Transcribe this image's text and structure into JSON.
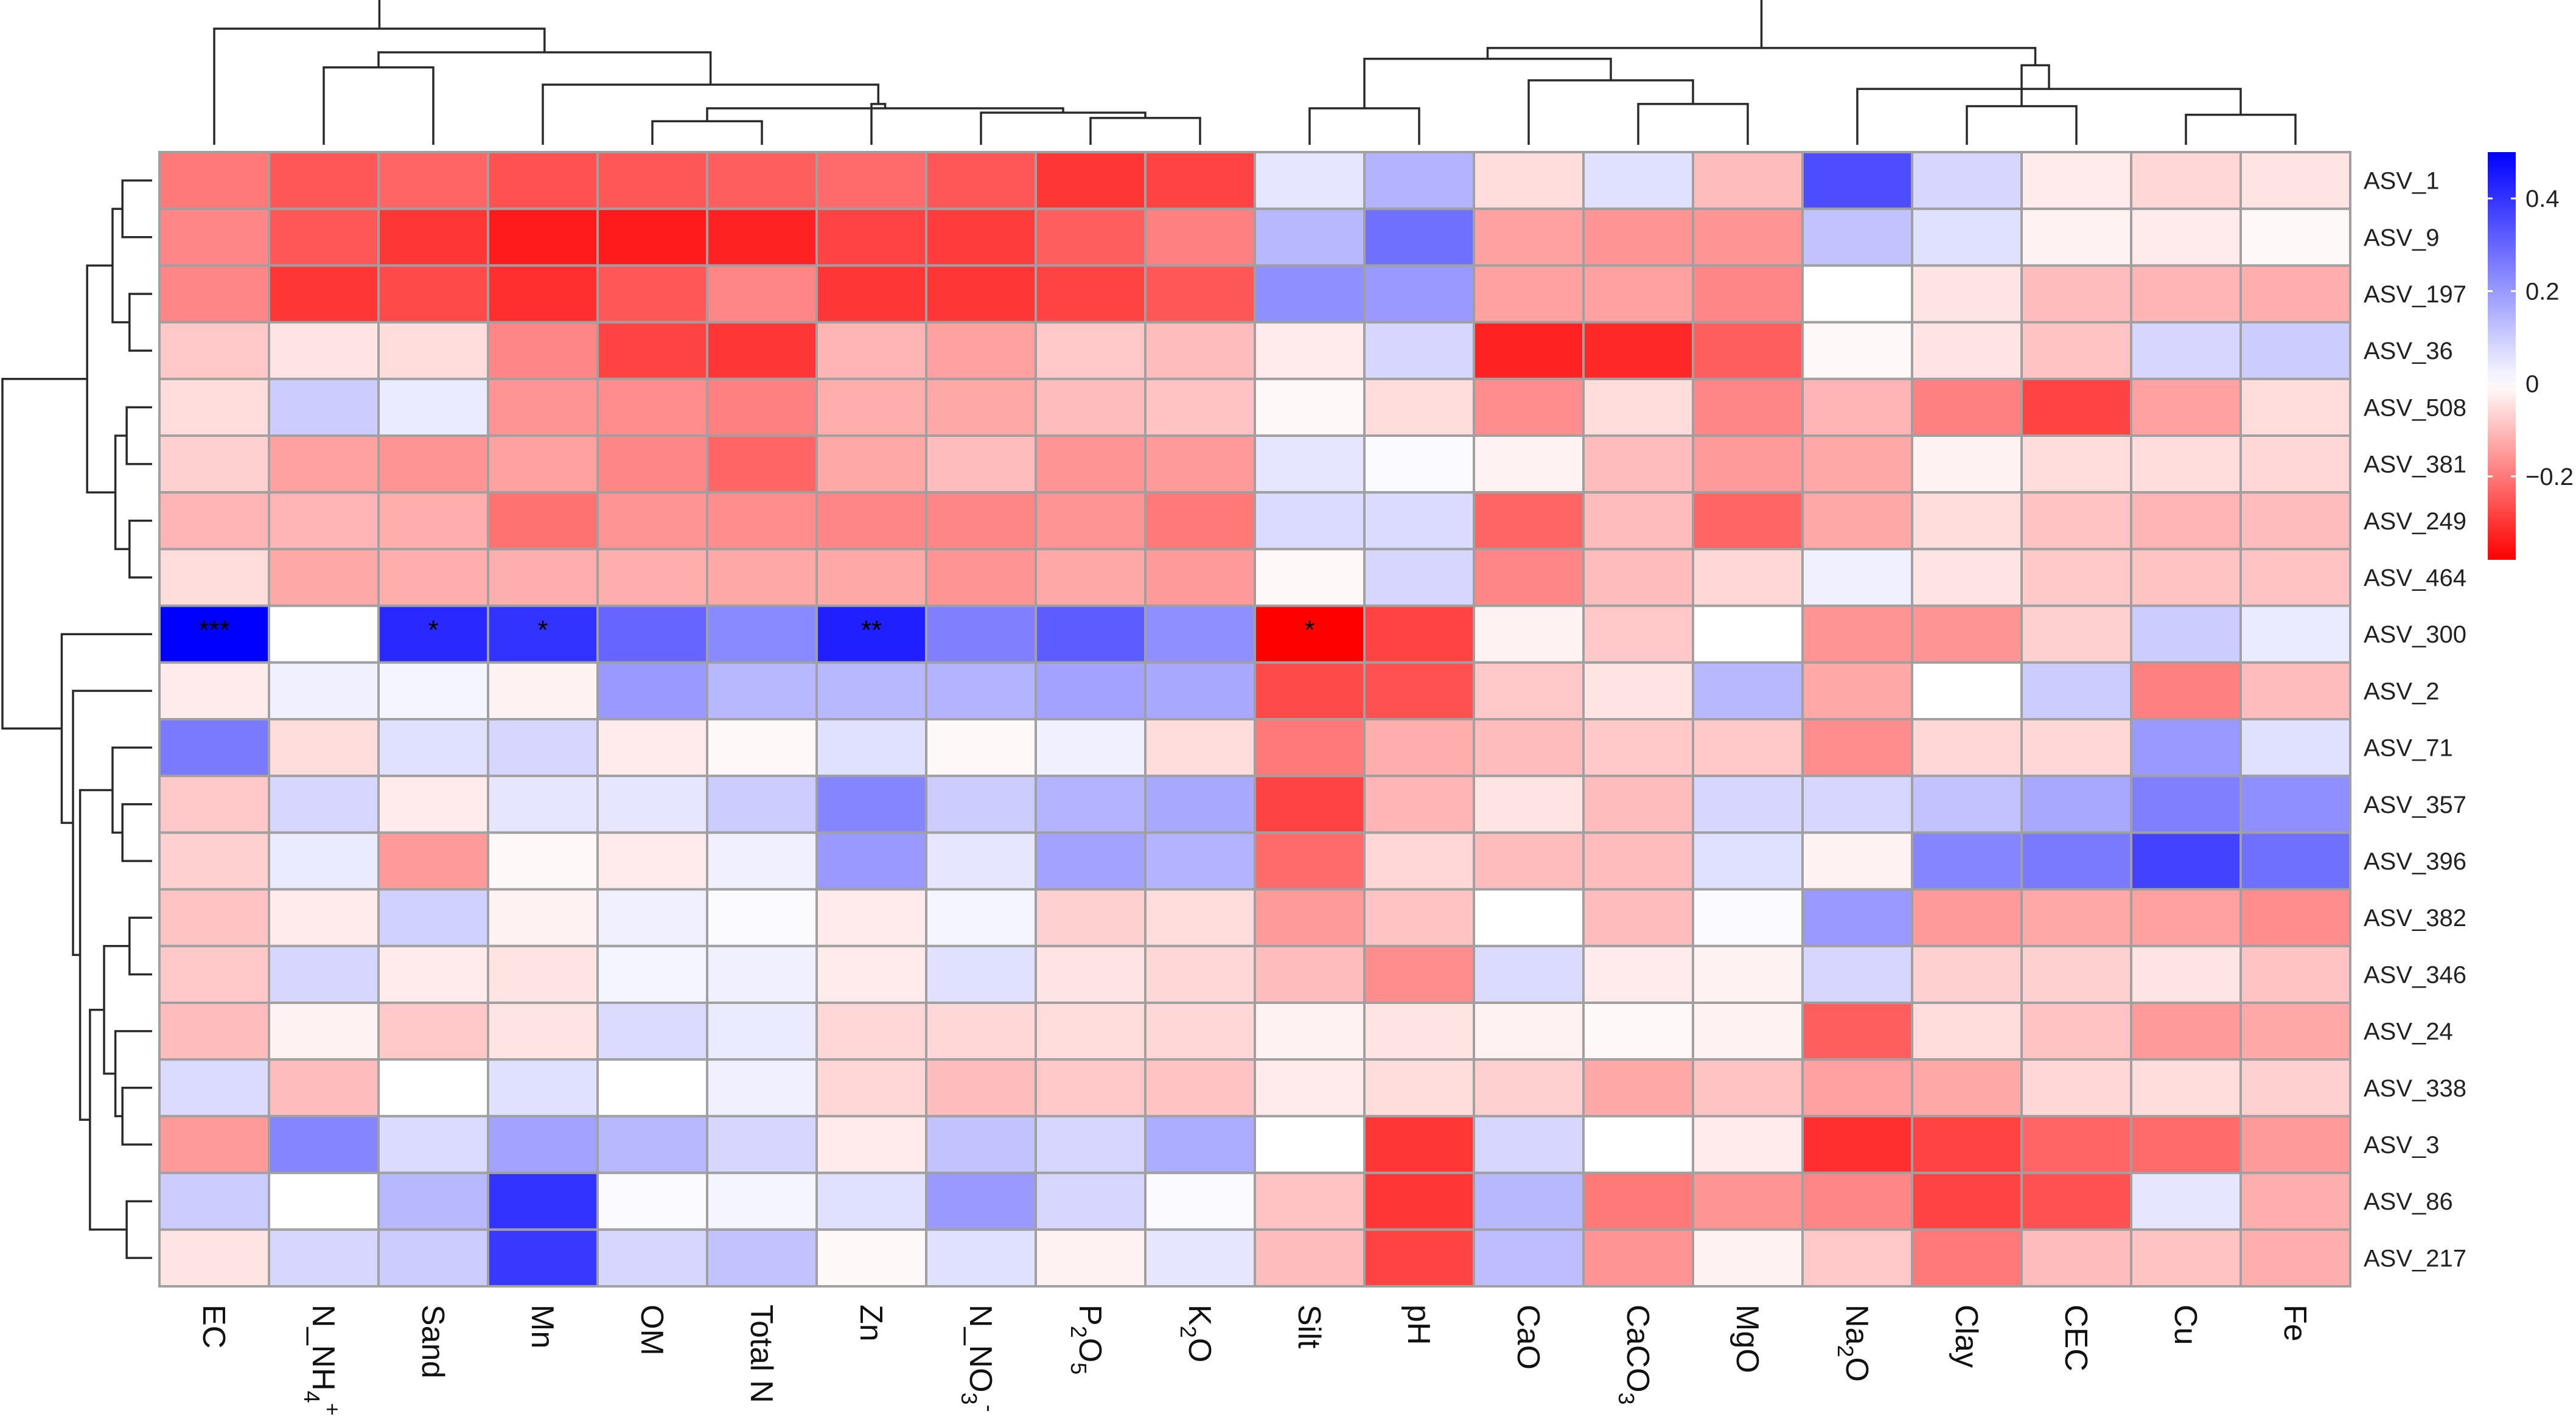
{
  "chart_data": {
    "type": "heatmap",
    "title": "",
    "columns": [
      "EC",
      "N_NH4+",
      "Sand",
      "Mn",
      "OM",
      "Total N",
      "Zn",
      "N_NO3-",
      "P2O5",
      "K2O",
      "Silt",
      "pH",
      "CaO",
      "CaCO3",
      "MgO",
      "Na2O",
      "Clay",
      "CEC",
      "Cu",
      "Fe"
    ],
    "column_display": [
      [
        {
          "t": "EC"
        }
      ],
      [
        {
          "t": "N_NH"
        },
        {
          "t": "4",
          "s": "sub"
        },
        {
          "t": "+",
          "s": "sup"
        }
      ],
      [
        {
          "t": "Sand"
        }
      ],
      [
        {
          "t": "Mn"
        }
      ],
      [
        {
          "t": "OM"
        }
      ],
      [
        {
          "t": "Total N"
        }
      ],
      [
        {
          "t": "Zn"
        }
      ],
      [
        {
          "t": "N_NO"
        },
        {
          "t": "3",
          "s": "sub"
        },
        {
          "t": "-",
          "s": "sup"
        }
      ],
      [
        {
          "t": "P"
        },
        {
          "t": "2",
          "s": "sub"
        },
        {
          "t": "O"
        },
        {
          "t": "5",
          "s": "sub"
        }
      ],
      [
        {
          "t": "K"
        },
        {
          "t": "2",
          "s": "sub"
        },
        {
          "t": "O"
        }
      ],
      [
        {
          "t": "Silt"
        }
      ],
      [
        {
          "t": "pH"
        }
      ],
      [
        {
          "t": "CaO"
        }
      ],
      [
        {
          "t": "CaCO"
        },
        {
          "t": "3",
          "s": "sub"
        }
      ],
      [
        {
          "t": "MgO"
        }
      ],
      [
        {
          "t": "Na"
        },
        {
          "t": "2",
          "s": "sub"
        },
        {
          "t": "O"
        }
      ],
      [
        {
          "t": "Clay"
        }
      ],
      [
        {
          "t": "CEC"
        }
      ],
      [
        {
          "t": "Cu"
        }
      ],
      [
        {
          "t": "Fe"
        }
      ]
    ],
    "rows": [
      "ASV_1",
      "ASV_9",
      "ASV_197",
      "ASV_36",
      "ASV_508",
      "ASV_381",
      "ASV_249",
      "ASV_464",
      "ASV_300",
      "ASV_2",
      "ASV_71",
      "ASV_357",
      "ASV_396",
      "ASV_382",
      "ASV_346",
      "ASV_24",
      "ASV_338",
      "ASV_3",
      "ASV_86",
      "ASV_217"
    ],
    "values": [
      [
        -0.2,
        -0.25,
        -0.23,
        -0.26,
        -0.25,
        -0.24,
        -0.22,
        -0.25,
        -0.3,
        -0.28,
        0.05,
        0.15,
        -0.05,
        0.06,
        -0.1,
        0.35,
        0.08,
        -0.03,
        -0.06,
        -0.04
      ],
      [
        -0.18,
        -0.25,
        -0.3,
        -0.34,
        -0.34,
        -0.33,
        -0.28,
        -0.29,
        -0.24,
        -0.19,
        0.14,
        0.28,
        -0.14,
        -0.16,
        -0.16,
        0.12,
        0.06,
        -0.02,
        -0.03,
        -0.01
      ],
      [
        -0.18,
        -0.3,
        -0.27,
        -0.31,
        -0.25,
        -0.18,
        -0.3,
        -0.3,
        -0.28,
        -0.25,
        0.22,
        0.2,
        -0.14,
        -0.14,
        -0.18,
        0.0,
        -0.04,
        -0.1,
        -0.11,
        -0.12
      ],
      [
        -0.08,
        -0.04,
        -0.05,
        -0.18,
        -0.28,
        -0.3,
        -0.11,
        -0.14,
        -0.08,
        -0.1,
        -0.03,
        0.08,
        -0.33,
        -0.32,
        -0.24,
        -0.01,
        -0.04,
        -0.09,
        0.08,
        0.1
      ],
      [
        -0.05,
        0.1,
        0.04,
        -0.16,
        -0.17,
        -0.19,
        -0.12,
        -0.13,
        -0.1,
        -0.09,
        -0.01,
        -0.05,
        -0.17,
        -0.05,
        -0.18,
        -0.11,
        -0.19,
        -0.28,
        -0.14,
        -0.05
      ],
      [
        -0.07,
        -0.14,
        -0.16,
        -0.14,
        -0.18,
        -0.23,
        -0.13,
        -0.1,
        -0.16,
        -0.15,
        0.05,
        0.01,
        -0.02,
        -0.1,
        -0.15,
        -0.13,
        -0.02,
        -0.05,
        -0.05,
        -0.06
      ],
      [
        -0.11,
        -0.11,
        -0.12,
        -0.21,
        -0.16,
        -0.17,
        -0.18,
        -0.18,
        -0.16,
        -0.2,
        0.07,
        0.07,
        -0.23,
        -0.1,
        -0.23,
        -0.13,
        -0.05,
        -0.09,
        -0.11,
        -0.1
      ],
      [
        -0.05,
        -0.13,
        -0.12,
        -0.12,
        -0.12,
        -0.13,
        -0.13,
        -0.16,
        -0.13,
        -0.15,
        -0.01,
        0.08,
        -0.18,
        -0.1,
        -0.06,
        0.03,
        -0.04,
        -0.08,
        -0.09,
        -0.09
      ],
      [
        0.5,
        0.0,
        0.42,
        0.4,
        0.3,
        0.23,
        0.44,
        0.25,
        0.32,
        0.22,
        -0.38,
        -0.28,
        -0.02,
        -0.08,
        0.0,
        -0.16,
        -0.16,
        -0.07,
        0.1,
        0.04
      ],
      [
        -0.03,
        0.03,
        0.02,
        -0.02,
        0.2,
        0.14,
        0.14,
        0.15,
        0.18,
        0.17,
        -0.27,
        -0.26,
        -0.08,
        -0.04,
        0.14,
        -0.13,
        0.0,
        0.1,
        -0.19,
        -0.1
      ],
      [
        0.26,
        -0.05,
        0.06,
        0.08,
        -0.03,
        -0.01,
        0.06,
        -0.01,
        0.03,
        -0.05,
        -0.2,
        -0.12,
        -0.1,
        -0.08,
        -0.08,
        -0.17,
        -0.06,
        -0.06,
        0.2,
        0.06
      ],
      [
        -0.08,
        0.08,
        -0.03,
        0.05,
        0.05,
        0.1,
        0.24,
        0.1,
        0.15,
        0.17,
        -0.28,
        -0.11,
        -0.04,
        -0.1,
        0.08,
        0.08,
        0.12,
        0.17,
        0.25,
        0.22
      ],
      [
        -0.07,
        0.04,
        -0.15,
        -0.01,
        -0.03,
        0.03,
        0.2,
        0.05,
        0.18,
        0.15,
        -0.22,
        -0.06,
        -0.1,
        -0.1,
        0.06,
        -0.02,
        0.24,
        0.26,
        0.37,
        0.28
      ],
      [
        -0.09,
        -0.03,
        0.09,
        -0.02,
        0.03,
        0.01,
        -0.03,
        0.02,
        -0.07,
        -0.05,
        -0.15,
        -0.09,
        0.0,
        -0.1,
        0.01,
        0.2,
        -0.15,
        -0.13,
        -0.14,
        -0.17
      ],
      [
        -0.08,
        0.08,
        -0.03,
        -0.04,
        0.02,
        0.03,
        -0.03,
        0.06,
        -0.04,
        -0.06,
        -0.1,
        -0.17,
        0.07,
        -0.03,
        -0.02,
        0.08,
        -0.07,
        -0.07,
        -0.04,
        -0.09
      ],
      [
        -0.1,
        -0.02,
        -0.08,
        -0.04,
        0.07,
        0.04,
        -0.06,
        -0.06,
        -0.05,
        -0.06,
        -0.02,
        -0.04,
        -0.02,
        -0.01,
        -0.02,
        -0.24,
        -0.05,
        -0.09,
        -0.15,
        -0.13
      ],
      [
        0.07,
        -0.1,
        0.0,
        0.06,
        0.0,
        0.03,
        -0.06,
        -0.1,
        -0.08,
        -0.09,
        -0.03,
        -0.05,
        -0.07,
        -0.13,
        -0.09,
        -0.14,
        -0.13,
        -0.06,
        -0.05,
        -0.07
      ],
      [
        -0.15,
        0.24,
        0.07,
        0.18,
        0.14,
        0.08,
        -0.03,
        0.12,
        0.08,
        0.16,
        0.0,
        -0.3,
        0.08,
        0.0,
        -0.03,
        -0.31,
        -0.28,
        -0.23,
        -0.22,
        -0.15
      ],
      [
        0.1,
        0.0,
        0.14,
        0.4,
        0.01,
        0.02,
        0.06,
        0.2,
        0.08,
        0.01,
        -0.09,
        -0.3,
        0.14,
        -0.2,
        -0.16,
        -0.18,
        -0.28,
        -0.26,
        0.05,
        -0.12
      ],
      [
        -0.04,
        0.08,
        0.1,
        0.39,
        0.08,
        0.12,
        -0.01,
        0.06,
        -0.02,
        0.05,
        -0.1,
        -0.28,
        0.13,
        -0.16,
        -0.02,
        -0.08,
        -0.2,
        -0.1,
        -0.09,
        -0.12
      ]
    ],
    "significance": [
      {
        "row": "ASV_300",
        "col": "EC",
        "mark": "***"
      },
      {
        "row": "ASV_300",
        "col": "Sand",
        "mark": "*"
      },
      {
        "row": "ASV_300",
        "col": "Mn",
        "mark": "*"
      },
      {
        "row": "ASV_300",
        "col": "Zn",
        "mark": "**"
      },
      {
        "row": "ASV_300",
        "col": "Silt",
        "mark": "*"
      }
    ],
    "color_scale": {
      "min": -0.38,
      "max": 0.5,
      "negative_color": "#ff0000",
      "zero_color": "#ffffff",
      "positive_color": "#0000ff",
      "ticks": [
        0.4,
        0.2,
        0,
        -0.2
      ],
      "tick_labels": [
        "0.4",
        "0.2",
        "0",
        "−0.2"
      ]
    },
    "column_dendrogram_merges": [
      [
        4,
        5
      ],
      [
        8,
        9
      ],
      [
        -2,
        7
      ],
      [
        -1,
        -3
      ],
      [
        -4,
        6
      ],
      [
        -5,
        3
      ],
      [
        1,
        2
      ],
      [
        -7,
        -6
      ],
      [
        0,
        -8
      ],
      [
        18,
        19
      ],
      [
        16,
        17
      ],
      [
        13,
        14
      ],
      [
        -10,
        15
      ],
      [
        -12,
        12
      ],
      [
        -13,
        -11
      ],
      [
        10,
        11
      ],
      [
        -16,
        -14
      ],
      [
        -17,
        -15
      ],
      [
        -9,
        -18
      ]
    ],
    "column_dendrogram_heights": [
      0.14,
      0.17,
      0.22,
      0.26,
      0.3,
      0.48,
      0.64,
      0.78,
      1.0,
      0.2,
      0.28,
      0.3,
      0.44,
      0.52,
      0.66,
      0.26,
      0.72,
      0.82,
      1.3
    ],
    "row_dendrogram_merges": [
      [
        2,
        3
      ],
      [
        0,
        1
      ],
      [
        -2,
        -1
      ],
      [
        4,
        5
      ],
      [
        6,
        7
      ],
      [
        -4,
        -5
      ],
      [
        -6,
        -3
      ],
      [
        18,
        19
      ],
      [
        16,
        17
      ],
      [
        13,
        14
      ],
      [
        15,
        -9
      ],
      [
        -10,
        -11
      ],
      [
        -8,
        -12
      ],
      [
        11,
        12
      ],
      [
        10,
        -14
      ],
      [
        -15,
        -13
      ],
      [
        9,
        -16
      ],
      [
        8,
        -17
      ],
      [
        -7,
        -18
      ]
    ],
    "row_dendrogram_heights": [
      0.1,
      0.15,
      0.22,
      0.12,
      0.1,
      0.2,
      0.4,
      0.12,
      0.15,
      0.1,
      0.2,
      0.28,
      0.38,
      0.15,
      0.22,
      0.45,
      0.5,
      0.58,
      1.0
    ]
  }
}
